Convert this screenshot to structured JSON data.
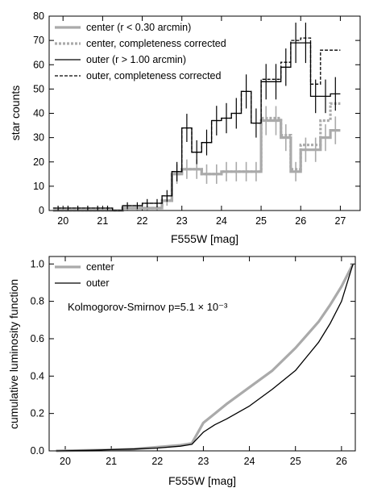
{
  "chart_data": [
    {
      "type": "line",
      "style": "step-histogram",
      "xlabel": "F555W [mag]",
      "ylabel": "star counts",
      "xlim": [
        19.65,
        27.5
      ],
      "ylim": [
        0,
        80
      ],
      "xticks": [
        20,
        21,
        22,
        23,
        24,
        25,
        26,
        27
      ],
      "yticks": [
        0,
        10,
        20,
        30,
        40,
        50,
        60,
        70,
        80
      ],
      "grid": false,
      "legend_position": "top-left",
      "edges": [
        19.75,
        20.0,
        20.25,
        20.5,
        20.75,
        21.0,
        21.25,
        21.5,
        21.75,
        22.0,
        22.25,
        22.5,
        22.75,
        23.0,
        23.25,
        23.5,
        23.75,
        24.0,
        24.25,
        24.5,
        24.75,
        25.0,
        25.25,
        25.5,
        25.75,
        26.0,
        26.25,
        26.5,
        26.75,
        27.0
      ],
      "series": [
        {
          "name": "center",
          "legend_text": "center (r < 0.30 arcmin)",
          "color": "#aaaaaa",
          "style": "solid-thick",
          "values": [
            0,
            0,
            0,
            0,
            0,
            0,
            0,
            1,
            1,
            1,
            1,
            4,
            15,
            17,
            17,
            15,
            15,
            16,
            16,
            16,
            16,
            37,
            37,
            30,
            16,
            25,
            25,
            30,
            33
          ],
          "errors": [
            0,
            0,
            0,
            0,
            0,
            0,
            0,
            1,
            1,
            1,
            1,
            2,
            4,
            4,
            4,
            4,
            4,
            4,
            4,
            4,
            4,
            6,
            6,
            5.5,
            4,
            5,
            5,
            5.5,
            5.7
          ]
        },
        {
          "name": "center, completeness corrected",
          "legend_text": "center, completeness corrected",
          "color": "#aaaaaa",
          "style": "dotted-thick",
          "values": [
            0,
            0,
            0,
            0,
            0,
            0,
            0,
            1,
            1,
            1,
            1,
            4,
            15,
            17,
            17,
            15,
            15,
            16,
            16,
            16,
            16,
            38,
            38,
            31,
            17,
            27,
            27,
            37,
            44
          ]
        },
        {
          "name": "outer",
          "legend_text": "outer (r > 1.00 arcmin)",
          "color": "#000000",
          "style": "solid",
          "values": [
            1,
            1,
            1,
            1,
            1,
            1,
            0,
            2,
            2,
            3,
            3,
            6,
            16,
            34,
            24,
            28,
            37,
            38,
            40,
            49,
            36,
            53,
            53,
            59,
            69,
            69,
            47,
            47,
            48
          ],
          "errors": [
            1,
            1,
            1,
            1,
            1,
            1,
            0,
            1.4,
            1.4,
            1.7,
            1.7,
            2.4,
            4,
            5.8,
            4.9,
            5.3,
            6.1,
            6.2,
            6.3,
            7,
            6,
            7.3,
            7.3,
            7.7,
            8.3,
            8.3,
            6.9,
            6.9,
            6.9
          ]
        },
        {
          "name": "outer, completeness corrected",
          "legend_text": "outer, completeness corrected",
          "color": "#000000",
          "style": "dashed",
          "values": [
            1,
            1,
            1,
            1,
            1,
            1,
            0,
            2,
            2,
            3,
            3,
            6,
            16,
            34,
            24,
            28,
            37,
            38,
            40,
            49,
            36,
            54,
            54,
            61,
            70,
            71,
            52,
            66,
            66
          ]
        }
      ]
    },
    {
      "type": "line",
      "xlabel": "F555W [mag]",
      "ylabel": "cumulative luminosity function",
      "xlim": [
        19.65,
        26.3
      ],
      "ylim": [
        0,
        1.04
      ],
      "xticks": [
        20,
        21,
        22,
        23,
        24,
        25,
        26
      ],
      "yticks": [
        0.0,
        0.2,
        0.4,
        0.6,
        0.8,
        1.0
      ],
      "ytick_labels": [
        "0.0",
        "0.2",
        "0.4",
        "0.6",
        "0.8",
        "1.0"
      ],
      "grid": false,
      "legend_position": "top-left",
      "annotation": "Kolmogorov-Smirnov p=5.1 × 10⁻³",
      "series": [
        {
          "name": "center",
          "color": "#aaaaaa",
          "style": "solid-thick",
          "x": [
            19.8,
            21.0,
            21.5,
            22.0,
            22.5,
            22.75,
            23.0,
            23.25,
            23.5,
            24.0,
            24.5,
            25.0,
            25.25,
            25.5,
            25.75,
            26.0,
            26.25
          ],
          "y": [
            0.0,
            0.005,
            0.01,
            0.02,
            0.03,
            0.04,
            0.15,
            0.2,
            0.25,
            0.34,
            0.43,
            0.55,
            0.62,
            0.69,
            0.78,
            0.88,
            1.0
          ]
        },
        {
          "name": "outer",
          "color": "#000000",
          "style": "solid",
          "x": [
            19.8,
            20.5,
            21.0,
            21.5,
            22.0,
            22.5,
            22.75,
            23.0,
            23.25,
            23.5,
            24.0,
            24.5,
            25.0,
            25.5,
            25.75,
            26.0,
            26.25
          ],
          "y": [
            0.0,
            0.003,
            0.007,
            0.01,
            0.015,
            0.025,
            0.035,
            0.1,
            0.14,
            0.17,
            0.24,
            0.33,
            0.43,
            0.58,
            0.68,
            0.8,
            1.0
          ]
        }
      ]
    }
  ]
}
